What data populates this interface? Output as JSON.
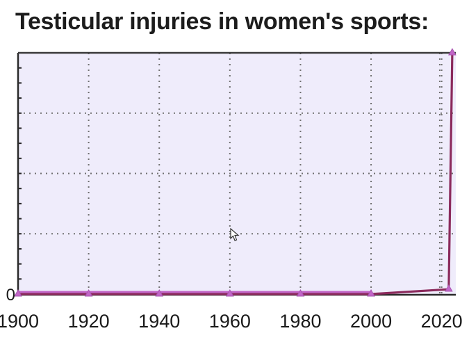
{
  "chart_data": {
    "type": "line",
    "title": "Testicular injuries in women's sports:",
    "x": [
      1900,
      1920,
      1940,
      1960,
      1980,
      2000,
      2022,
      2023
    ],
    "values": [
      0,
      0,
      0,
      0,
      0,
      0,
      0.02,
      1
    ],
    "x_ticks": [
      "1900",
      "1920",
      "1940",
      "1960",
      "1980",
      "2000",
      "2020"
    ],
    "y_tick_labels": [
      "0"
    ],
    "xlim": [
      1900,
      2024
    ],
    "ylim": [
      0,
      1
    ],
    "grid": true,
    "colors": {
      "plot_background": "#efecfb",
      "line": "#8b2a5c",
      "marker": "#c266c8",
      "grid": "#707070"
    }
  }
}
